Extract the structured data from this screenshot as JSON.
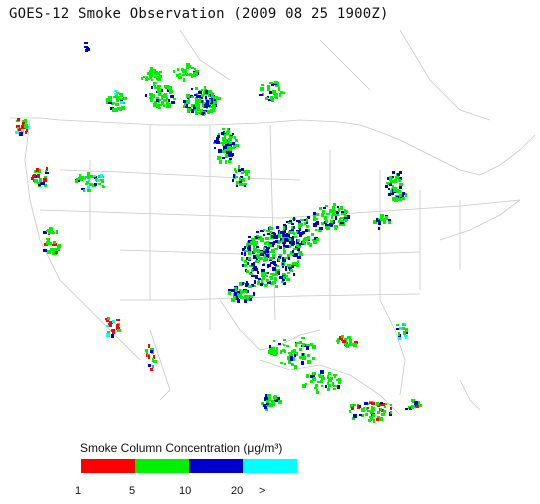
{
  "title": "GOES-12 Smoke Observation (2009 08 25  1900Z)",
  "legend": {
    "label": "Smoke Column Concentration (μg/m³)",
    "ticks": [
      "1",
      "5",
      "10",
      "20",
      ">"
    ],
    "colors": [
      "#ff0000",
      "#00ee00",
      "#0000cc",
      "#00ffff"
    ]
  },
  "colors": {
    "borders": "#c8c8c8",
    "land_background": "#ffffff"
  }
}
